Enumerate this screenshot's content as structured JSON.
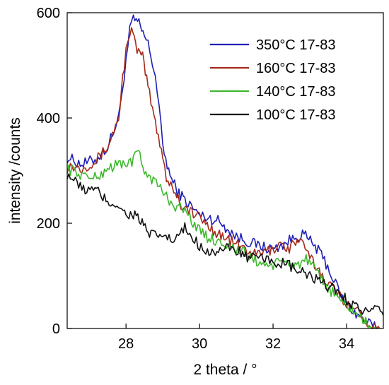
{
  "chart_data": {
    "type": "line",
    "title": "",
    "xlabel": "2 theta / °",
    "ylabel": "intensity /counts",
    "xlim": [
      26.4,
      35.0
    ],
    "ylim": [
      0,
      600
    ],
    "x_ticks": [
      28,
      30,
      32,
      34
    ],
    "y_ticks": [
      0,
      200,
      400,
      600
    ],
    "grid": false,
    "legend_position": "top-right",
    "series": [
      {
        "name": "350°C 17-83",
        "color": "#1f1fb4",
        "points": [
          [
            26.4,
            325
          ],
          [
            26.8,
            312
          ],
          [
            27.2,
            322
          ],
          [
            27.5,
            345
          ],
          [
            27.8,
            400
          ],
          [
            27.9,
            455
          ],
          [
            28.0,
            510
          ],
          [
            28.1,
            565
          ],
          [
            28.2,
            588
          ],
          [
            28.35,
            578
          ],
          [
            28.5,
            555
          ],
          [
            28.6,
            540
          ],
          [
            28.8,
            480
          ],
          [
            28.9,
            420
          ],
          [
            29.0,
            345
          ],
          [
            29.2,
            290
          ],
          [
            29.4,
            260
          ],
          [
            29.6,
            245
          ],
          [
            30.0,
            215
          ],
          [
            30.5,
            205
          ],
          [
            31.0,
            175
          ],
          [
            31.5,
            160
          ],
          [
            32.0,
            150
          ],
          [
            32.4,
            165
          ],
          [
            32.8,
            180
          ],
          [
            33.1,
            160
          ],
          [
            33.4,
            130
          ],
          [
            33.7,
            85
          ],
          [
            33.9,
            55
          ],
          [
            34.1,
            40
          ],
          [
            34.3,
            25
          ],
          [
            34.6,
            10
          ],
          [
            34.8,
            0
          ]
        ]
      },
      {
        "name": "160°C 17-83",
        "color": "#a42a1b",
        "points": [
          [
            26.4,
            310
          ],
          [
            26.8,
            305
          ],
          [
            27.2,
            320
          ],
          [
            27.5,
            345
          ],
          [
            27.8,
            400
          ],
          [
            27.95,
            500
          ],
          [
            28.05,
            555
          ],
          [
            28.15,
            565
          ],
          [
            28.3,
            530
          ],
          [
            28.45,
            515
          ],
          [
            28.6,
            460
          ],
          [
            28.8,
            390
          ],
          [
            29.0,
            330
          ],
          [
            29.1,
            285
          ],
          [
            29.3,
            265
          ],
          [
            29.5,
            235
          ],
          [
            30.0,
            210
          ],
          [
            30.5,
            180
          ],
          [
            31.0,
            160
          ],
          [
            31.5,
            140
          ],
          [
            32.0,
            150
          ],
          [
            32.2,
            165
          ],
          [
            32.4,
            150
          ],
          [
            32.7,
            170
          ],
          [
            33.0,
            135
          ],
          [
            33.3,
            105
          ],
          [
            33.7,
            70
          ],
          [
            34.0,
            50
          ],
          [
            34.4,
            25
          ],
          [
            34.7,
            5
          ],
          [
            34.9,
            0
          ]
        ]
      },
      {
        "name": "140°C 17-83",
        "color": "#3db82c",
        "points": [
          [
            26.4,
            305
          ],
          [
            26.8,
            292
          ],
          [
            27.2,
            285
          ],
          [
            27.5,
            305
          ],
          [
            27.8,
            312
          ],
          [
            28.0,
            315
          ],
          [
            28.2,
            318
          ],
          [
            28.3,
            340
          ],
          [
            28.5,
            300
          ],
          [
            28.7,
            285
          ],
          [
            28.9,
            270
          ],
          [
            29.1,
            250
          ],
          [
            29.3,
            235
          ],
          [
            29.6,
            225
          ],
          [
            30.0,
            185
          ],
          [
            30.3,
            170
          ],
          [
            30.6,
            165
          ],
          [
            31.0,
            150
          ],
          [
            31.3,
            140
          ],
          [
            31.6,
            125
          ],
          [
            32.0,
            120
          ],
          [
            32.3,
            128
          ],
          [
            32.6,
            120
          ],
          [
            32.9,
            130
          ],
          [
            33.2,
            105
          ],
          [
            33.4,
            85
          ],
          [
            33.8,
            55
          ],
          [
            34.1,
            40
          ],
          [
            34.4,
            20
          ],
          [
            34.6,
            5
          ],
          [
            34.8,
            0
          ]
        ]
      },
      {
        "name": "100°C 17-83",
        "color": "#111111",
        "points": [
          [
            26.4,
            295
          ],
          [
            26.8,
            265
          ],
          [
            27.2,
            262
          ],
          [
            27.5,
            240
          ],
          [
            27.8,
            235
          ],
          [
            28.0,
            215
          ],
          [
            28.2,
            218
          ],
          [
            28.4,
            205
          ],
          [
            28.6,
            180
          ],
          [
            28.8,
            175
          ],
          [
            29.0,
            178
          ],
          [
            29.3,
            165
          ],
          [
            29.6,
            190
          ],
          [
            30.0,
            158
          ],
          [
            30.3,
            145
          ],
          [
            30.6,
            150
          ],
          [
            31.0,
            150
          ],
          [
            31.3,
            135
          ],
          [
            31.6,
            132
          ],
          [
            32.0,
            128
          ],
          [
            32.4,
            120
          ],
          [
            32.8,
            105
          ],
          [
            33.0,
            100
          ],
          [
            33.3,
            85
          ],
          [
            33.7,
            75
          ],
          [
            34.0,
            55
          ],
          [
            34.3,
            40
          ],
          [
            34.6,
            30
          ],
          [
            34.8,
            35
          ],
          [
            35.0,
            25
          ]
        ]
      }
    ]
  }
}
